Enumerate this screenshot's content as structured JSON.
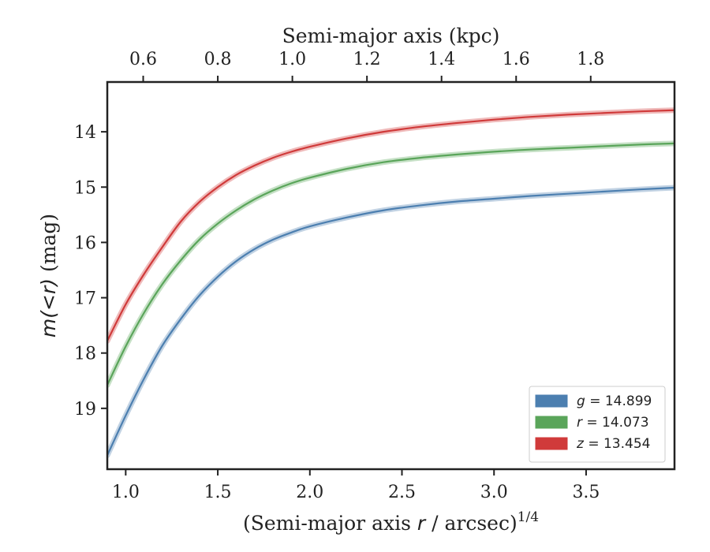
{
  "chart_data": {
    "type": "line",
    "x_axis": {
      "label_prefix": "(Semi-major axis ",
      "label_var": "r",
      "label_mid": " / arcsec)",
      "label_sup": "1/4",
      "lim": [
        0.9,
        3.98
      ],
      "ticks": [
        1.0,
        1.5,
        2.0,
        2.5,
        3.0,
        3.5
      ],
      "tick_labels": [
        "1.0",
        "1.5",
        "2.0",
        "2.5",
        "3.0",
        "3.5"
      ]
    },
    "x2_axis": {
      "label": "Semi-major axis (kpc)",
      "tick_positions": [
        1.095,
        1.5,
        1.905,
        2.31,
        2.715,
        3.12,
        3.525
      ],
      "tick_labels": [
        "0.6",
        "0.8",
        "1.0",
        "1.2",
        "1.4",
        "1.6",
        "1.8"
      ]
    },
    "y_axis": {
      "label_math": "m(<r)",
      "label_unit": " (mag)",
      "lim": [
        13.1,
        20.1
      ],
      "inverted": true,
      "ticks": [
        14,
        15,
        16,
        17,
        18,
        19
      ],
      "tick_labels": [
        "14",
        "15",
        "16",
        "17",
        "18",
        "19"
      ]
    },
    "grid": false,
    "legend_position": "lower-right",
    "x": [
      0.9,
      1.0,
      1.1,
      1.2,
      1.3,
      1.4,
      1.5,
      1.6,
      1.7,
      1.8,
      1.9,
      2.0,
      2.2,
      2.4,
      2.6,
      2.8,
      3.0,
      3.2,
      3.4,
      3.6,
      3.8,
      3.98
    ],
    "series": [
      {
        "var": "g",
        "label_value": "= 14.899",
        "color": "#4c7fb0",
        "values": [
          19.85,
          19.13,
          18.46,
          17.86,
          17.38,
          16.96,
          16.62,
          16.34,
          16.12,
          15.95,
          15.82,
          15.71,
          15.55,
          15.42,
          15.33,
          15.26,
          15.21,
          15.16,
          15.12,
          15.08,
          15.04,
          15.01
        ]
      },
      {
        "var": "r",
        "label_value": "= 14.073",
        "color": "#5aa55a",
        "values": [
          18.58,
          17.88,
          17.27,
          16.75,
          16.32,
          15.95,
          15.66,
          15.42,
          15.22,
          15.06,
          14.93,
          14.83,
          14.67,
          14.55,
          14.47,
          14.41,
          14.36,
          14.32,
          14.29,
          14.26,
          14.23,
          14.21
        ]
      },
      {
        "var": "z",
        "label_value": "= 13.454",
        "color": "#d03a3a",
        "values": [
          17.78,
          17.12,
          16.57,
          16.08,
          15.62,
          15.27,
          15.0,
          14.78,
          14.61,
          14.47,
          14.36,
          14.27,
          14.12,
          14.0,
          13.91,
          13.84,
          13.78,
          13.73,
          13.69,
          13.66,
          13.63,
          13.61
        ]
      }
    ]
  }
}
